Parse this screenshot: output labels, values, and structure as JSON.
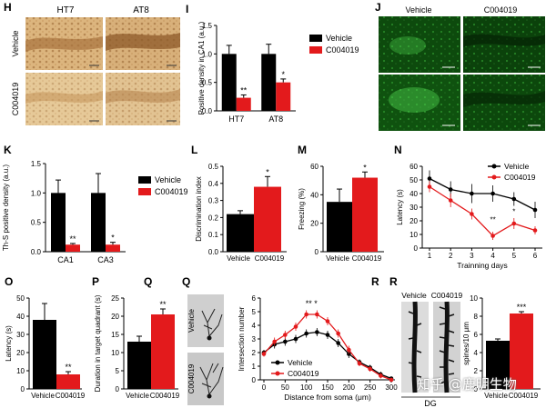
{
  "colors": {
    "vehicle": "#000000",
    "c004019": "#e31a1c",
    "ihc_bg": "#d9b27a",
    "ihc_dark": "#8a5a2b",
    "fluor_bg": "#0a3a0a",
    "fluor_bright": "#4fd64f",
    "spine_bg": "#d8d8d8",
    "neuron_bg": "#cfcfcf",
    "watermark": "#ffffff"
  },
  "watermark": "知乎 @鹿明生物",
  "panels": {
    "H": {
      "letter": "H",
      "col_labels": [
        "HT7",
        "AT8"
      ],
      "row_labels": [
        "Vehicle",
        "C004019"
      ]
    },
    "J": {
      "letter": "J",
      "col_labels": [
        "Vehicle",
        "C004019"
      ]
    },
    "R_img": {
      "letter": "R",
      "col_labels": [
        "Vehicle",
        "C004019"
      ],
      "region": "DG"
    }
  },
  "chart_data": [
    {
      "id": "I",
      "letter": "I",
      "type": "bar",
      "categories": [
        "HT7",
        "AT8"
      ],
      "series": [
        {
          "name": "Vehicle",
          "values": [
            1.0,
            1.0
          ],
          "err": [
            0.15,
            0.17
          ]
        },
        {
          "name": "C004019",
          "values": [
            0.23,
            0.5
          ],
          "err": [
            0.05,
            0.06
          ]
        }
      ],
      "ylabel": "Positive density in CA1 (a.u.)",
      "ylim": [
        0,
        1.5
      ],
      "yticks": [
        "0.0",
        "0.5",
        "1.0",
        "1.5"
      ],
      "sig": [
        "**",
        "*"
      ],
      "legend": [
        "Vehicle",
        "C004019"
      ]
    },
    {
      "id": "K",
      "letter": "K",
      "type": "bar",
      "categories": [
        "CA1",
        "CA3"
      ],
      "series": [
        {
          "name": "Vehicle",
          "values": [
            1.0,
            1.0
          ],
          "err": [
            0.22,
            0.33
          ]
        },
        {
          "name": "C004019",
          "values": [
            0.12,
            0.12
          ],
          "err": [
            0.02,
            0.04
          ]
        }
      ],
      "ylabel": "Th-S positive density (a.u.)",
      "ylim": [
        0,
        1.5
      ],
      "yticks": [
        "0.0",
        "0.5",
        "1.0",
        "1.5"
      ],
      "sig": [
        "**",
        "*"
      ],
      "legend": [
        "Vehicle",
        "C004019"
      ]
    },
    {
      "id": "L",
      "letter": "L",
      "type": "bar",
      "categories": [
        "Vehicle",
        "C004019"
      ],
      "values": [
        0.22,
        0.38
      ],
      "err": [
        0.02,
        0.06
      ],
      "ylabel": "Discrimination index",
      "ylim": [
        0,
        0.5
      ],
      "yticks": [
        "0.0",
        "0.1",
        "0.2",
        "0.3",
        "0.4",
        "0.5"
      ],
      "sig": "*"
    },
    {
      "id": "M",
      "letter": "M",
      "type": "bar",
      "categories": [
        "Vehicle",
        "C004019"
      ],
      "values": [
        35,
        52
      ],
      "err": [
        9,
        4
      ],
      "ylabel": "Freezing (%)",
      "ylim": [
        0,
        60
      ],
      "yticks": [
        "0",
        "20",
        "40",
        "60"
      ],
      "sig": "*"
    },
    {
      "id": "N",
      "letter": "N",
      "type": "line",
      "x": [
        1,
        2,
        3,
        4,
        5,
        6
      ],
      "series": [
        {
          "name": "Vehicle",
          "values": [
            51,
            43,
            40,
            40,
            36,
            28
          ],
          "err": [
            6,
            6,
            7,
            6,
            5,
            6
          ]
        },
        {
          "name": "C004019",
          "values": [
            45,
            35,
            25,
            9,
            18,
            13
          ],
          "err": [
            4,
            5,
            4,
            3,
            4,
            3
          ]
        }
      ],
      "ylabel": "Latency (s)",
      "xlabel": "Trainning days",
      "ylim": [
        0,
        60
      ],
      "yticks": [
        "0",
        "10",
        "20",
        "30",
        "40",
        "50",
        "60"
      ],
      "xticks": [
        "1",
        "2",
        "3",
        "4",
        "5",
        "6"
      ],
      "sig": {
        "day4": "**",
        "day5": "*"
      },
      "legend": [
        "Vehicle",
        "C004019"
      ]
    },
    {
      "id": "O",
      "letter": "O",
      "type": "bar",
      "categories": [
        "Vehicle",
        "C004019"
      ],
      "values": [
        38,
        8
      ],
      "err": [
        9,
        1.5
      ],
      "ylabel": "Latency (s)",
      "ylim": [
        0,
        50
      ],
      "yticks": [
        "0",
        "10",
        "20",
        "30",
        "40",
        "50"
      ],
      "sig": "**"
    },
    {
      "id": "P",
      "letter": "P",
      "type": "bar",
      "categories": [
        "Vehicle",
        "C004019"
      ],
      "values": [
        13,
        20.5
      ],
      "err": [
        1.5,
        1.5
      ],
      "ylabel": "Duration in target quadrant (s)",
      "ylim": [
        0,
        25
      ],
      "yticks": [
        "0",
        "5",
        "10",
        "15",
        "20",
        "25"
      ],
      "sig": "**"
    },
    {
      "id": "Q",
      "letter": "Q",
      "type": "line",
      "x": [
        0,
        25,
        50,
        75,
        100,
        125,
        150,
        175,
        200,
        225,
        250,
        275,
        300
      ],
      "series": [
        {
          "name": "Vehicle",
          "values": [
            2.0,
            2.6,
            2.8,
            3.0,
            3.4,
            3.5,
            3.3,
            2.7,
            1.9,
            1.3,
            0.9,
            0.4,
            0.1
          ],
          "err": [
            0.2,
            0.3,
            0.3,
            0.3,
            0.3,
            0.3,
            0.3,
            0.3,
            0.3,
            0.2,
            0.2,
            0.2,
            0.1
          ]
        },
        {
          "name": "C004019",
          "values": [
            1.9,
            2.8,
            3.3,
            3.9,
            4.8,
            4.8,
            4.3,
            3.4,
            2.2,
            1.2,
            0.8,
            0.3,
            0.0
          ],
          "err": [
            0.2,
            0.3,
            0.3,
            0.3,
            0.3,
            0.3,
            0.3,
            0.3,
            0.3,
            0.2,
            0.2,
            0.2,
            0.1
          ]
        }
      ],
      "ylabel": "Intersection number",
      "xlabel": "Distance from soma (μm)",
      "ylim": [
        0,
        6
      ],
      "yticks": [
        "0",
        "1",
        "2",
        "3",
        "4",
        "5",
        "6"
      ],
      "xticks": [
        "0",
        "50",
        "100",
        "150",
        "200",
        "250",
        "300"
      ],
      "sig": "** *",
      "legend": [
        "Vehicle",
        "C004019"
      ],
      "side_labels": [
        "Vehicle",
        "C004019"
      ]
    },
    {
      "id": "R",
      "letter": "R",
      "type": "bar",
      "categories": [
        "Vehicle",
        "C004019"
      ],
      "values": [
        5.3,
        8.3
      ],
      "err": [
        0.2,
        0.2
      ],
      "ylabel": "spines/10 μm",
      "ylim": [
        0,
        10
      ],
      "yticks": [
        "0",
        "2",
        "4",
        "6",
        "8",
        "10"
      ],
      "sig": "***"
    }
  ]
}
